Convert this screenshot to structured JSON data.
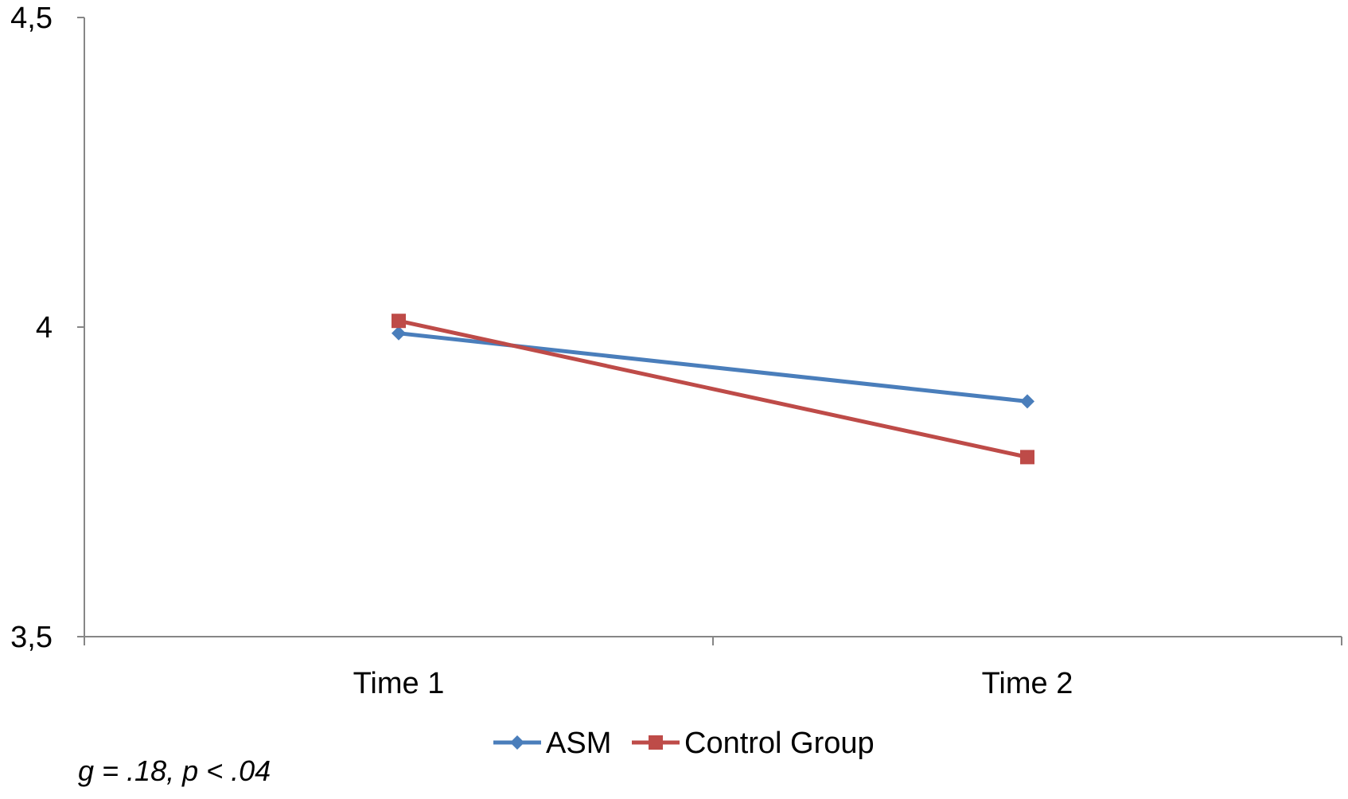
{
  "chart_data": {
    "type": "line",
    "categories": [
      "Time 1",
      "Time 2"
    ],
    "series": [
      {
        "name": "ASM",
        "values": [
          3.99,
          3.88
        ],
        "color": "#4a7ebb",
        "marker": "diamond"
      },
      {
        "name": "Control Group",
        "values": [
          4.01,
          3.79
        ],
        "color": "#be4b48",
        "marker": "square"
      }
    ],
    "ylim": [
      3.5,
      4.5
    ],
    "yticks": [
      3.5,
      4,
      4.5
    ],
    "ytick_labels": [
      "3,5",
      "4",
      "4,5"
    ],
    "grid": false,
    "legend_position": "bottom",
    "annotation": "g = .18, p < .04"
  }
}
